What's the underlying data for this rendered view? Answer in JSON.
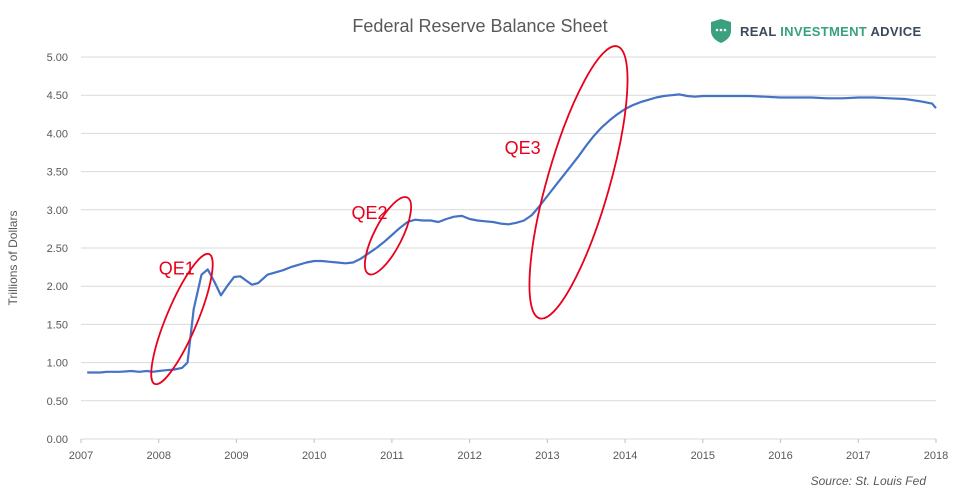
{
  "brand": {
    "name_part1": "REAL ",
    "name_highlight": "INVESTMENT",
    "name_part2": " ADVICE",
    "logo_icon": "shield-icon",
    "logo_color": "#3aa17e"
  },
  "source": "Source: St. Louis Fed",
  "chart_data": {
    "type": "line",
    "title": "Federal Reserve Balance Sheet",
    "ylabel": "Trillions of Dollars",
    "xlabel": "",
    "ylim": [
      0,
      5
    ],
    "xlim": [
      2007,
      2018
    ],
    "grid": true,
    "line_color": "#4472c4",
    "annotation_color": "#e8001c",
    "y_ticks": [
      "0.00",
      "0.50",
      "1.00",
      "1.50",
      "2.00",
      "2.50",
      "3.00",
      "3.50",
      "4.00",
      "4.50",
      "5.00"
    ],
    "x_ticks": [
      "2007",
      "2008",
      "2009",
      "2010",
      "2011",
      "2012",
      "2013",
      "2014",
      "2015",
      "2016",
      "2017",
      "2018"
    ],
    "series": [
      {
        "x": [
          2007.08,
          2007.25,
          2007.33,
          2007.5,
          2007.65,
          2007.75,
          2007.85,
          2007.92,
          2008.0,
          2008.1,
          2008.2,
          2008.3,
          2008.37,
          2008.45,
          2008.55,
          2008.63,
          2008.72,
          2008.8,
          2008.88,
          2008.97,
          2009.05,
          2009.13,
          2009.2,
          2009.28,
          2009.4,
          2009.5,
          2009.6,
          2009.7,
          2009.8,
          2009.9,
          2010.0,
          2010.1,
          2010.2,
          2010.3,
          2010.4,
          2010.5,
          2010.6,
          2010.7,
          2010.8,
          2010.9,
          2011.0,
          2011.1,
          2011.2,
          2011.3,
          2011.4,
          2011.5,
          2011.6,
          2011.7,
          2011.8,
          2011.9,
          2012.0,
          2012.1,
          2012.2,
          2012.3,
          2012.4,
          2012.5,
          2012.6,
          2012.7,
          2012.8,
          2012.9,
          2013.0,
          2013.1,
          2013.2,
          2013.3,
          2013.4,
          2013.5,
          2013.6,
          2013.7,
          2013.8,
          2013.9,
          2014.0,
          2014.1,
          2014.2,
          2014.3,
          2014.4,
          2014.5,
          2014.6,
          2014.7,
          2014.8,
          2014.9,
          2015.0,
          2015.2,
          2015.4,
          2015.6,
          2015.8,
          2016.0,
          2016.2,
          2016.4,
          2016.6,
          2016.8,
          2017.0,
          2017.2,
          2017.4,
          2017.6,
          2017.8,
          2017.95,
          2018.0
        ],
        "values": [
          0.87,
          0.87,
          0.88,
          0.88,
          0.89,
          0.88,
          0.89,
          0.88,
          0.89,
          0.9,
          0.91,
          0.93,
          1.0,
          1.7,
          2.15,
          2.22,
          2.05,
          1.88,
          2.0,
          2.12,
          2.13,
          2.07,
          2.02,
          2.04,
          2.15,
          2.18,
          2.21,
          2.25,
          2.28,
          2.31,
          2.33,
          2.33,
          2.32,
          2.31,
          2.3,
          2.31,
          2.36,
          2.43,
          2.5,
          2.58,
          2.67,
          2.76,
          2.84,
          2.87,
          2.86,
          2.86,
          2.84,
          2.88,
          2.91,
          2.92,
          2.88,
          2.86,
          2.85,
          2.84,
          2.82,
          2.81,
          2.83,
          2.86,
          2.93,
          3.05,
          3.18,
          3.31,
          3.44,
          3.57,
          3.7,
          3.84,
          3.97,
          4.08,
          4.17,
          4.25,
          4.32,
          4.37,
          4.41,
          4.44,
          4.47,
          4.49,
          4.5,
          4.51,
          4.49,
          4.48,
          4.49,
          4.49,
          4.49,
          4.49,
          4.48,
          4.47,
          4.47,
          4.47,
          4.46,
          4.46,
          4.47,
          4.47,
          4.46,
          4.45,
          4.42,
          4.39,
          4.33
        ]
      }
    ],
    "annotations": [
      {
        "label": "QE1",
        "center": [
          2008.3,
          1.57
        ],
        "axis_half_lengths": [
          0.35,
          0.85
        ],
        "label_at": [
          2008.0,
          2.15
        ]
      },
      {
        "label": "QE2",
        "center": [
          2010.95,
          2.66
        ],
        "axis_half_lengths": [
          0.25,
          0.5
        ],
        "label_at": [
          2010.48,
          2.88
        ]
      },
      {
        "label": "QE3",
        "center": [
          2013.4,
          3.36
        ],
        "axis_half_lengths": [
          0.5,
          1.78
        ],
        "label_at": [
          2012.45,
          3.73
        ]
      }
    ]
  }
}
